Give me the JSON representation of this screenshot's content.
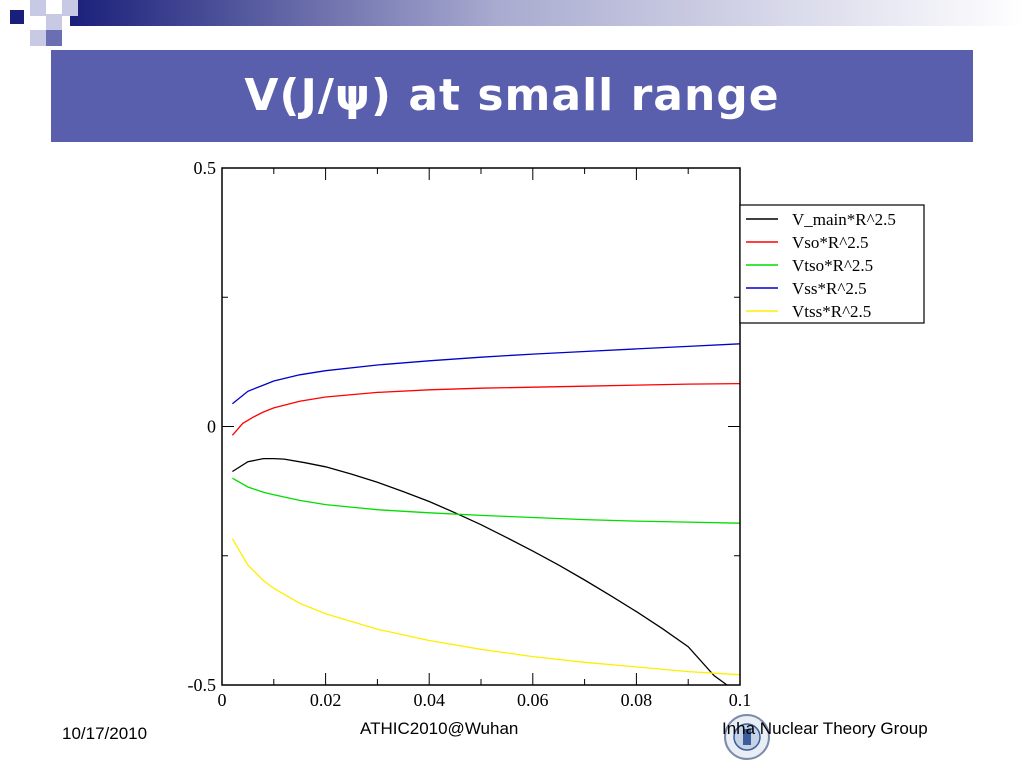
{
  "slide": {
    "title": "V(J/ψ) at small range",
    "footer_date": "10/17/2010",
    "footer_center": "ATHIC2010@Wuhan",
    "footer_group": "Inha Nuclear Theory Group",
    "title_bar_color": "#5a5fad"
  },
  "chart_data": {
    "type": "line",
    "title": "",
    "xlabel": "",
    "ylabel": "",
    "xlim": [
      0,
      0.1
    ],
    "ylim": [
      -0.5,
      0.5
    ],
    "x_ticks": [
      "0",
      "0.02",
      "0.04",
      "0.06",
      "0.08",
      "0.1"
    ],
    "y_ticks": [
      "-0.5",
      "0",
      "0.5"
    ],
    "legend_position": "top-right (outside plot)",
    "grid": false,
    "series": [
      {
        "name": "V_main*R^2.5",
        "color": "#000000",
        "x": [
          0.002,
          0.005,
          0.008,
          0.01,
          0.012,
          0.016,
          0.02,
          0.025,
          0.03,
          0.035,
          0.04,
          0.045,
          0.05,
          0.055,
          0.06,
          0.065,
          0.07,
          0.075,
          0.08,
          0.085,
          0.09,
          0.095,
          0.0975
        ],
        "y": [
          -0.087,
          -0.068,
          -0.062,
          -0.062,
          -0.063,
          -0.07,
          -0.078,
          -0.092,
          -0.108,
          -0.126,
          -0.145,
          -0.167,
          -0.19,
          -0.215,
          -0.241,
          -0.268,
          -0.297,
          -0.327,
          -0.358,
          -0.391,
          -0.426,
          -0.482,
          -0.5
        ]
      },
      {
        "name": "Vso*R^2.5",
        "color": "#ff0000",
        "x": [
          0.002,
          0.004,
          0.006,
          0.008,
          0.01,
          0.015,
          0.02,
          0.03,
          0.04,
          0.05,
          0.06,
          0.07,
          0.08,
          0.09,
          0.1
        ],
        "y": [
          -0.017,
          0.006,
          0.018,
          0.028,
          0.036,
          0.049,
          0.057,
          0.066,
          0.071,
          0.074,
          0.076,
          0.078,
          0.08,
          0.082,
          0.083
        ]
      },
      {
        "name": "Vtso*R^2.5",
        "color": "#00dd00",
        "x": [
          0.002,
          0.005,
          0.008,
          0.01,
          0.015,
          0.02,
          0.03,
          0.04,
          0.05,
          0.06,
          0.07,
          0.08,
          0.09,
          0.1
        ],
        "y": [
          -0.1,
          -0.117,
          -0.127,
          -0.132,
          -0.143,
          -0.151,
          -0.161,
          -0.167,
          -0.172,
          -0.176,
          -0.18,
          -0.183,
          -0.185,
          -0.187
        ]
      },
      {
        "name": "Vss*R^2.5",
        "color": "#0000cc",
        "x": [
          0.002,
          0.005,
          0.008,
          0.01,
          0.015,
          0.02,
          0.03,
          0.04,
          0.05,
          0.06,
          0.07,
          0.08,
          0.09,
          0.1
        ],
        "y": [
          0.044,
          0.068,
          0.08,
          0.088,
          0.1,
          0.108,
          0.119,
          0.127,
          0.134,
          0.14,
          0.145,
          0.15,
          0.155,
          0.16
        ]
      },
      {
        "name": "Vtss*R^2.5",
        "color": "#ffee00",
        "x": [
          0.002,
          0.005,
          0.008,
          0.01,
          0.015,
          0.02,
          0.03,
          0.04,
          0.05,
          0.06,
          0.07,
          0.08,
          0.09,
          0.1
        ],
        "y": [
          -0.217,
          -0.268,
          -0.298,
          -0.313,
          -0.342,
          -0.362,
          -0.392,
          -0.414,
          -0.431,
          -0.445,
          -0.456,
          -0.465,
          -0.474,
          -0.48
        ]
      }
    ]
  }
}
